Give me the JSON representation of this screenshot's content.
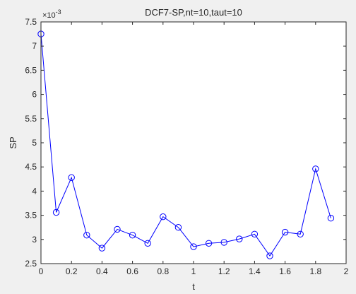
{
  "colors": {
    "figure_bg": "#f0f0f0",
    "axes_bg": "#ffffff",
    "axis": "#262626",
    "series": "#0000ff"
  },
  "chart_data": {
    "type": "line",
    "title": "DCF7-SP,nt=10,taut=10",
    "xlabel": "t",
    "ylabel": "SP",
    "exponent_label_base": "×10",
    "exponent_label_power": "-3",
    "xlim": [
      0,
      2
    ],
    "ylim": [
      2.5,
      7.5
    ],
    "xticks": [
      0,
      0.2,
      0.4,
      0.6,
      0.8,
      1,
      1.2,
      1.4,
      1.6,
      1.8,
      2
    ],
    "xtick_labels": [
      "0",
      "0.2",
      "0.4",
      "0.6",
      "0.8",
      "1",
      "1.2",
      "1.4",
      "1.6",
      "1.8",
      "2"
    ],
    "yticks": [
      2.5,
      3,
      3.5,
      4,
      4.5,
      5,
      5.5,
      6,
      6.5,
      7,
      7.5
    ],
    "ytick_labels": [
      "2.5",
      "3",
      "3.5",
      "4",
      "4.5",
      "5",
      "5.5",
      "6",
      "6.5",
      "7",
      "7.5"
    ],
    "grid": false,
    "marker": "circle",
    "series": [
      {
        "x": [
          0,
          0.1,
          0.2,
          0.3,
          0.4,
          0.5,
          0.6,
          0.7,
          0.8,
          0.9,
          1.0,
          1.1,
          1.2,
          1.3,
          1.4,
          1.5,
          1.6,
          1.7,
          1.8,
          1.9
        ],
        "y": [
          7.25,
          3.56,
          4.28,
          3.09,
          2.82,
          3.21,
          3.09,
          2.92,
          3.47,
          3.25,
          2.85,
          2.92,
          2.94,
          3.01,
          3.11,
          2.66,
          3.15,
          3.11,
          4.46,
          3.44
        ]
      }
    ]
  }
}
